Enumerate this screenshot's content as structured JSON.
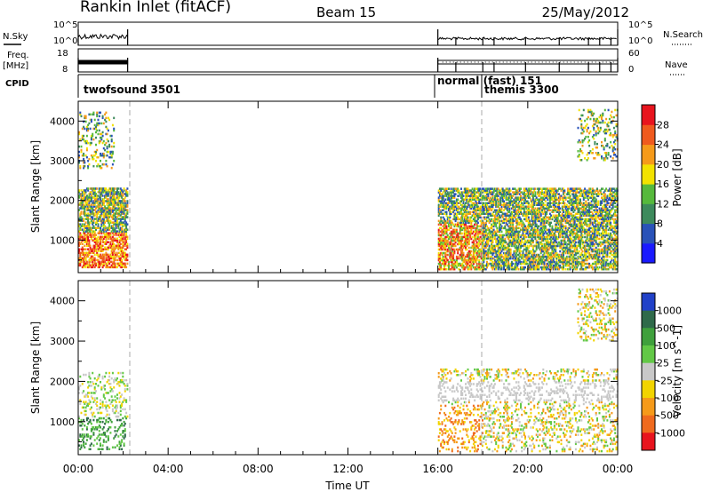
{
  "header": {
    "title": "Rankin Inlet (fitACF)",
    "beam": "Beam 15",
    "date": "25/May/2012"
  },
  "left_labels": {
    "nsky": "N.Sky",
    "freq": "Freq.",
    "freq_unit": "[MHz]",
    "cpid": "CPID"
  },
  "right_labels": {
    "nsearch": "N.Search",
    "nave": "Nave"
  },
  "chart_data": [
    {
      "type": "line",
      "panel": "noise",
      "left_axis": {
        "ticks": [
          "10^5",
          "10^0"
        ]
      },
      "right_axis": {
        "ticks": [
          "10^5",
          "10^0"
        ]
      },
      "segments_hours": [
        [
          0.0,
          2.2
        ],
        [
          16.0,
          24.0
        ]
      ]
    },
    {
      "type": "line",
      "panel": "frequency-nave",
      "left_axis": {
        "ticks": [
          "18",
          "8"
        ]
      },
      "right_axis": {
        "ticks": [
          "60",
          "0"
        ]
      },
      "segments_hours": [
        [
          0.0,
          2.2
        ],
        [
          16.0,
          24.0
        ]
      ]
    },
    {
      "type": "table",
      "panel": "cpid",
      "programs": [
        {
          "label": "twofsound 3501",
          "start_hours": 0.0
        },
        {
          "label": "normal (fast) 151",
          "start_hours": 16.0
        },
        {
          "label": "themis 3300",
          "start_hours": 18.0
        }
      ]
    },
    {
      "type": "heatmap",
      "panel": "power",
      "ylabel": "Slant Range [km]",
      "yticks": [
        1000,
        2000,
        3000,
        4000
      ],
      "ylim": [
        180,
        4500
      ],
      "colorbar": {
        "label": "Power [dB]",
        "ticks": [
          "4",
          "8",
          "12",
          "16",
          "20",
          "24",
          "28"
        ],
        "range": [
          0,
          30
        ],
        "colors": [
          "#1a1aff",
          "#2952b8",
          "#3d8a5c",
          "#56b93c",
          "#f2e200",
          "#f59a1a",
          "#ef5a1e",
          "#e8141e"
        ]
      },
      "regions": [
        {
          "t": [
            0.0,
            2.2
          ],
          "r": [
            300,
            2300
          ],
          "v": 20
        },
        {
          "t": [
            0.0,
            1.6
          ],
          "r": [
            2800,
            4200
          ],
          "v": 6
        },
        {
          "t": [
            16.0,
            24.0
          ],
          "r": [
            250,
            2300
          ],
          "v": 14
        },
        {
          "t": [
            22.2,
            24.0
          ],
          "r": [
            3000,
            4300
          ],
          "v": 6
        }
      ]
    },
    {
      "type": "heatmap",
      "panel": "velocity",
      "ylabel": "Slant Range [km]",
      "yticks": [
        1000,
        2000,
        3000,
        4000
      ],
      "ylim": [
        180,
        4500
      ],
      "colorbar": {
        "label": "Velocity [m s^-1]",
        "ticks": [
          "1000",
          "500",
          "100",
          "25",
          "-25",
          "-100",
          "-500",
          "-1000"
        ],
        "colors": [
          "#2141c8",
          "#2f6a4a",
          "#3fa03c",
          "#62c846",
          "#c8c8c8",
          "#f2d400",
          "#f59a1a",
          "#ef6a1e",
          "#e8141e"
        ]
      },
      "regions": [
        {
          "t": [
            0.0,
            2.2
          ],
          "r": [
            300,
            2200
          ],
          "v": 3
        },
        {
          "t": [
            16.0,
            24.0
          ],
          "r": [
            250,
            2300
          ],
          "v": 5
        },
        {
          "t": [
            22.2,
            24.0
          ],
          "r": [
            3000,
            4300
          ],
          "v": 3
        }
      ]
    }
  ],
  "x_axis": {
    "xlabel": "Time UT",
    "ticks": [
      "00:00",
      "04:00",
      "08:00",
      "12:00",
      "16:00",
      "20:00",
      "00:00"
    ],
    "range_hours": [
      0,
      24
    ]
  }
}
